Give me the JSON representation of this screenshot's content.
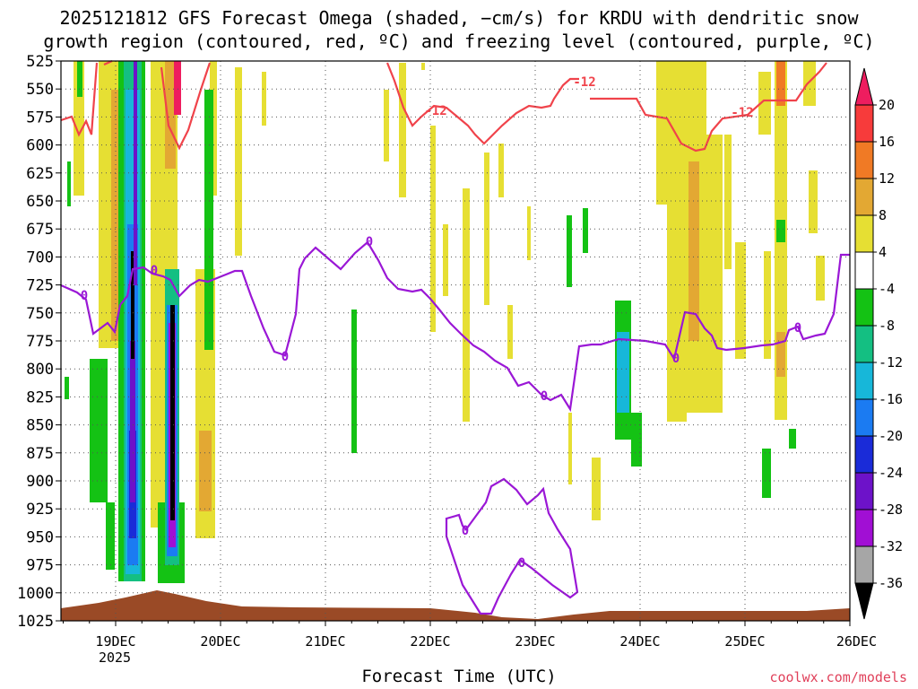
{
  "chart_data": {
    "type": "heatmap",
    "title": "2025121812 GFS Forecast Omega (shaded, −cm/s) for KRDU with dendritic snow",
    "subtitle": "growth region (contoured, red, ºC) and freezing level (contoured, purple, ºC)",
    "xlabel": "Forecast Time (UTC)",
    "ylabel": "",
    "x_ticks": [
      "19DEC",
      "20DEC",
      "21DEC",
      "22DEC",
      "23DEC",
      "24DEC",
      "25DEC",
      "26DEC"
    ],
    "x_year_label": "2025",
    "y_ticks": [
      525,
      550,
      575,
      600,
      625,
      650,
      675,
      700,
      725,
      750,
      775,
      800,
      825,
      850,
      875,
      900,
      925,
      950,
      975,
      1000,
      1025
    ],
    "y_range": [
      525,
      1025
    ],
    "grid": true,
    "colorbar": {
      "labels": [
        "20",
        "16",
        "12",
        "8",
        "4",
        "-4",
        "-8",
        "-12",
        "-16",
        "-20",
        "-24",
        "-28",
        "-32",
        "-36"
      ],
      "colors": [
        "#ee1d5f",
        "#f73b3b",
        "#f07a25",
        "#e3a833",
        "#e6df33",
        "#ffffff",
        "#14c214",
        "#14bf82",
        "#17b7d9",
        "#1b7bf2",
        "#1a2bd8",
        "#6d12c9",
        "#a10fd4",
        "#a6a6a6",
        "#000000"
      ]
    },
    "contour_labels": {
      "red": [
        "-12",
        "-12",
        "-12"
      ],
      "purple": [
        "0",
        "0",
        "0",
        "0",
        "0",
        "0",
        "0",
        "0",
        "0"
      ]
    },
    "colors": {
      "freezing_level": "#9a17d6",
      "dgz": "#f0434b",
      "terrain": "#9a4a26"
    },
    "watermark": "coolwx.com/models"
  }
}
